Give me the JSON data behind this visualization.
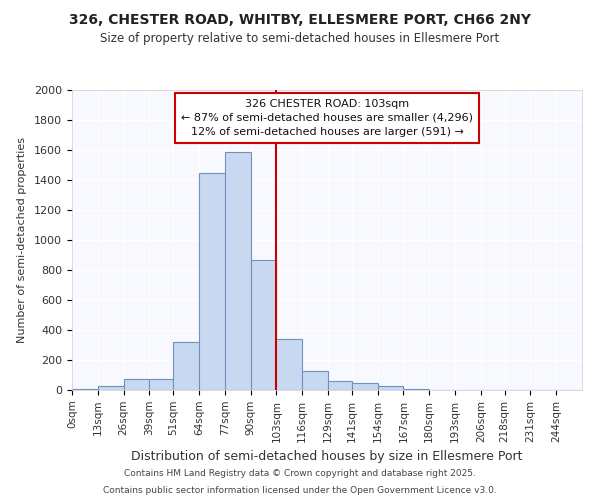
{
  "title1": "326, CHESTER ROAD, WHITBY, ELLESMERE PORT, CH66 2NY",
  "title2": "Size of property relative to semi-detached houses in Ellesmere Port",
  "xlabel": "Distribution of semi-detached houses by size in Ellesmere Port",
  "ylabel_text": "Number of semi-detached properties",
  "annotation_line1": "326 CHESTER ROAD: 103sqm",
  "annotation_line2": "← 87% of semi-detached houses are smaller (4,296)",
  "annotation_line3": "12% of semi-detached houses are larger (591) →",
  "property_value": 103,
  "bar_color": "#c8d8f0",
  "bar_edge_color": "#7090c0",
  "red_line_color": "#cc0000",
  "background_color": "#ffffff",
  "plot_bg_color": "#f8f8ff",
  "annotation_box_color": "#ffffff",
  "annotation_box_edge": "#cc0000",
  "bins": [
    0,
    13,
    26,
    39,
    51,
    64,
    77,
    90,
    103,
    116,
    129,
    141,
    154,
    167,
    180,
    193,
    206,
    218,
    231,
    244,
    257
  ],
  "counts": [
    10,
    30,
    75,
    75,
    320,
    1450,
    1590,
    870,
    340,
    125,
    60,
    50,
    30,
    5,
    0,
    0,
    0,
    0,
    0,
    0
  ],
  "footer1": "Contains HM Land Registry data © Crown copyright and database right 2025.",
  "footer2": "Contains public sector information licensed under the Open Government Licence v3.0.",
  "ylim": [
    0,
    2000
  ],
  "yticks": [
    0,
    200,
    400,
    600,
    800,
    1000,
    1200,
    1400,
    1600,
    1800,
    2000
  ]
}
